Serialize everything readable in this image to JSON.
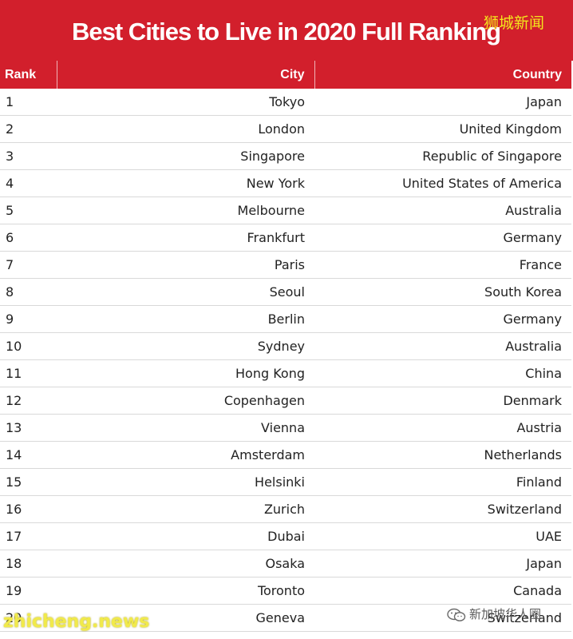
{
  "banner": {
    "title": "Best Cities to Live in 2020 Full Ranking",
    "badge": "狮城新闻",
    "background_color": "#d21f2c"
  },
  "table": {
    "headers": {
      "rank": "Rank",
      "city": "City",
      "country": "Country"
    },
    "rows": [
      {
        "rank": "1",
        "city": "Tokyo",
        "country": "Japan"
      },
      {
        "rank": "2",
        "city": "London",
        "country": "United Kingdom"
      },
      {
        "rank": "3",
        "city": "Singapore",
        "country": "Republic of Singapore"
      },
      {
        "rank": "4",
        "city": "New York",
        "country": "United States of America"
      },
      {
        "rank": "5",
        "city": "Melbourne",
        "country": "Australia"
      },
      {
        "rank": "6",
        "city": "Frankfurt",
        "country": "Germany"
      },
      {
        "rank": "7",
        "city": "Paris",
        "country": "France"
      },
      {
        "rank": "8",
        "city": "Seoul",
        "country": "South Korea"
      },
      {
        "rank": "9",
        "city": "Berlin",
        "country": "Germany"
      },
      {
        "rank": "10",
        "city": "Sydney",
        "country": "Australia"
      },
      {
        "rank": "11",
        "city": "Hong Kong",
        "country": "China"
      },
      {
        "rank": "12",
        "city": "Copenhagen",
        "country": "Denmark"
      },
      {
        "rank": "13",
        "city": "Vienna",
        "country": "Austria"
      },
      {
        "rank": "14",
        "city": "Amsterdam",
        "country": "Netherlands"
      },
      {
        "rank": "15",
        "city": "Helsinki",
        "country": "Finland"
      },
      {
        "rank": "16",
        "city": "Zurich",
        "country": "Switzerland"
      },
      {
        "rank": "17",
        "city": "Dubai",
        "country": "UAE"
      },
      {
        "rank": "18",
        "city": "Osaka",
        "country": "Japan"
      },
      {
        "rank": "19",
        "city": "Toronto",
        "country": "Canada"
      },
      {
        "rank": "20",
        "city": "Geneva",
        "country": "Switzerland"
      }
    ]
  },
  "watermarks": {
    "left": "zhicheng.news",
    "right_text": "新加坡华人圈",
    "right_icon": "wechat-icon"
  }
}
